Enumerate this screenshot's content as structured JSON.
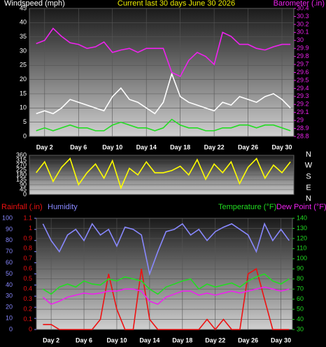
{
  "chart_data": [
    {
      "type": "line",
      "title": "Current last 30 days June 30 2026",
      "ylabel": "Windspeed (mph)",
      "y2label": "Barometer (.in)",
      "x": [
        1,
        2,
        3,
        4,
        5,
        6,
        7,
        8,
        9,
        10,
        11,
        12,
        13,
        14,
        15,
        16,
        17,
        18,
        19,
        20,
        21,
        22,
        23,
        24,
        25,
        26,
        27,
        28,
        29,
        30,
        31
      ],
      "xlim": [
        0.2,
        31.4
      ],
      "xticks": [
        {
          "value": 2,
          "label": "Day 2"
        },
        {
          "value": 6,
          "label": "Day 6"
        },
        {
          "value": 10,
          "label": "Day 10"
        },
        {
          "value": 14,
          "label": "Day 14"
        },
        {
          "value": 18,
          "label": "Day 18"
        },
        {
          "value": 22,
          "label": "Day 22"
        },
        {
          "value": 26,
          "label": "Day 26"
        },
        {
          "value": 30,
          "label": "Day 30"
        }
      ],
      "ylim": [
        0,
        45
      ],
      "yticks": [
        0,
        5,
        10,
        15,
        20,
        25,
        30,
        35,
        40,
        45
      ],
      "y2lim": [
        28.8,
        30.4
      ],
      "y2ticks": [
        28.8,
        28.9,
        29,
        29.1,
        29.2,
        29.3,
        29.4,
        29.5,
        29.6,
        29.7,
        29.8,
        29.9,
        30,
        30.1,
        30.2,
        30.3,
        30.4
      ],
      "grid": true,
      "series": [
        {
          "color": "#ffffff",
          "values": [
            8,
            9,
            8,
            10,
            13,
            12,
            11,
            10,
            9,
            14,
            17,
            13,
            12,
            10,
            8,
            12,
            22,
            14,
            12,
            11,
            10,
            9,
            12,
            11,
            14,
            13,
            12,
            14,
            15,
            13,
            10
          ]
        },
        {
          "color": "#22dd22",
          "values": [
            2,
            3,
            2,
            3,
            4,
            3,
            3,
            2,
            2,
            4,
            5,
            4,
            3,
            3,
            2,
            3,
            6,
            4,
            3,
            3,
            2,
            2,
            3,
            3,
            4,
            4,
            3,
            4,
            4,
            3,
            2
          ]
        },
        {
          "color": "#ee22ee",
          "axis": "y2",
          "values": [
            29.96,
            30.0,
            30.15,
            30.05,
            29.97,
            29.95,
            29.9,
            29.92,
            29.98,
            29.85,
            29.88,
            29.9,
            29.85,
            29.9,
            29.9,
            29.9,
            29.6,
            29.55,
            29.75,
            29.85,
            29.8,
            29.7,
            30.1,
            30.05,
            29.95,
            29.95,
            29.9,
            29.88,
            29.92,
            29.95,
            29.95
          ]
        }
      ]
    },
    {
      "type": "line",
      "x": [
        1,
        2,
        3,
        4,
        5,
        6,
        7,
        8,
        9,
        10,
        11,
        12,
        13,
        14,
        15,
        16,
        17,
        18,
        19,
        20,
        21,
        22,
        23,
        24,
        25,
        26,
        27,
        28,
        29,
        30,
        31
      ],
      "xlim": [
        0.2,
        31.4
      ],
      "ylim": [
        0,
        360
      ],
      "yticks": [
        0,
        45,
        90,
        135,
        180,
        225,
        270,
        315,
        360
      ],
      "grid": true,
      "direction_labels": [
        "N",
        "W",
        "S",
        "E",
        "N"
      ],
      "series": [
        {
          "color": "#ffff00",
          "values": [
            200,
            300,
            120,
            250,
            330,
            90,
            200,
            280,
            150,
            310,
            60,
            240,
            180,
            300,
            200,
            200,
            220,
            260,
            180,
            320,
            140,
            280,
            200,
            300,
            100,
            250,
            330,
            150,
            270,
            200,
            300
          ]
        }
      ]
    },
    {
      "type": "line",
      "x": [
        1,
        2,
        3,
        4,
        5,
        6,
        7,
        8,
        9,
        10,
        11,
        12,
        13,
        14,
        15,
        16,
        17,
        18,
        19,
        20,
        21,
        22,
        23,
        24,
        25,
        26,
        27,
        28,
        29,
        30,
        31
      ],
      "xlim": [
        0.2,
        31.4
      ],
      "xticks": [
        {
          "value": 2,
          "label": "Day 2"
        },
        {
          "value": 6,
          "label": "Day 6"
        },
        {
          "value": 10,
          "label": "Day 10"
        },
        {
          "value": 14,
          "label": "Day 14"
        },
        {
          "value": 18,
          "label": "Day 18"
        },
        {
          "value": 22,
          "label": "Day 22"
        },
        {
          "value": 26,
          "label": "Day 26"
        },
        {
          "value": 30,
          "label": "Day 30"
        }
      ],
      "ylim": [
        0,
        1.1
      ],
      "yticks": [
        0,
        0.1,
        0.2,
        0.3,
        0.4,
        0.5,
        0.6,
        0.7,
        0.8,
        0.9,
        1,
        1.1
      ],
      "y3lim": [
        0,
        100
      ],
      "y3ticks": [
        0,
        10,
        20,
        30,
        40,
        50,
        60,
        70,
        80,
        90,
        100
      ],
      "y2lim": [
        30,
        140
      ],
      "y2ticks": [
        30,
        40,
        50,
        60,
        70,
        80,
        90,
        100,
        110,
        120,
        130,
        140
      ],
      "grid": true,
      "series": [
        {
          "name": "Rainfall (.in)",
          "color": "#ee1111",
          "values": [
            0.05,
            0.05,
            0,
            0,
            0,
            0,
            0,
            0.1,
            0.55,
            0.2,
            0,
            0,
            0.6,
            0.1,
            0,
            0,
            0,
            0,
            0,
            0,
            0.1,
            0,
            0.1,
            0,
            0,
            0.55,
            0.6,
            0.3,
            0,
            0,
            0
          ]
        },
        {
          "name": "Humidity",
          "color": "#8888ff",
          "axis": "y3",
          "values": [
            95,
            80,
            70,
            85,
            90,
            80,
            95,
            85,
            90,
            75,
            92,
            90,
            85,
            50,
            70,
            88,
            90,
            95,
            85,
            90,
            80,
            88,
            92,
            95,
            90,
            85,
            70,
            95,
            80,
            90,
            80
          ]
        },
        {
          "name": "Temperature (°F)",
          "color": "#22dd22",
          "axis": "y2",
          "values": [
            70,
            65,
            72,
            75,
            72,
            78,
            75,
            74,
            80,
            78,
            82,
            80,
            78,
            70,
            65,
            72,
            75,
            78,
            80,
            70,
            75,
            72,
            74,
            76,
            72,
            78,
            82,
            85,
            78,
            75,
            80
          ]
        },
        {
          "name": "Dew Point (°F)",
          "color": "#ee22ee",
          "axis": "y2",
          "values": [
            62,
            55,
            58,
            62,
            64,
            66,
            65,
            66,
            68,
            68,
            70,
            70,
            68,
            58,
            55,
            62,
            65,
            68,
            68,
            64,
            66,
            64,
            66,
            68,
            66,
            68,
            70,
            72,
            70,
            68,
            70
          ]
        }
      ]
    }
  ]
}
